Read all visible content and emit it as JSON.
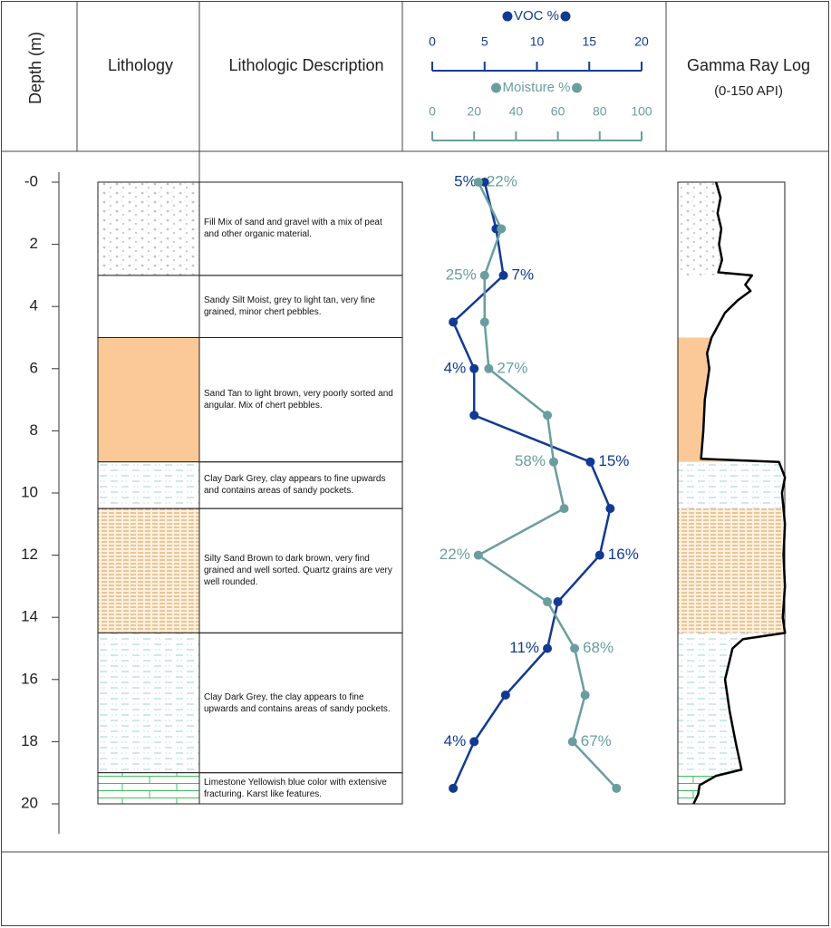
{
  "header": {
    "depth_label": "Depth (m)",
    "lithology": "Lithology",
    "description": "Lithologic Description",
    "gamma_title": "Gamma Ray Log",
    "gamma_units": "(0-150 API)"
  },
  "depth_axis": {
    "ylim": [
      0,
      20
    ],
    "yticks": [
      {
        "value": 0,
        "label": "-0"
      },
      2,
      4,
      6,
      8,
      10,
      12,
      14,
      16,
      18,
      20
    ]
  },
  "layers": [
    {
      "top": 0,
      "bottom": 3,
      "pattern": "gravel",
      "description": "Fill  Mix of sand and gravel with a mix of peat and other organic material."
    },
    {
      "top": 3,
      "bottom": 5,
      "pattern": "plain",
      "description": "Sandy Silt Moist, grey to light tan, very fine grained, minor chert pebbles."
    },
    {
      "top": 5,
      "bottom": 9,
      "pattern": "sand",
      "description": "Sand Tan to light brown, very poorly sorted and angular.  Mix of chert pebbles."
    },
    {
      "top": 9,
      "bottom": 10.5,
      "pattern": "clay",
      "description": "Clay Dark Grey,  clay appears to fine upwards and contains areas of sandy pockets."
    },
    {
      "top": 10.5,
      "bottom": 14.5,
      "pattern": "silty",
      "description": "Silty Sand Brown to dark brown, very find grained and well sorted.  Quartz grains are very well rounded."
    },
    {
      "top": 14.5,
      "bottom": 19,
      "pattern": "clay",
      "description": "Clay Dark Grey,  the clay appears to fine upwards and contains areas of sandy pockets."
    },
    {
      "top": 19,
      "bottom": 20,
      "pattern": "limestone",
      "description": "Limestone Yellowish blue color with extensive fracturing.  Karst like features."
    }
  ],
  "chart_data": {
    "type": "line",
    "y": [
      0,
      1.5,
      3,
      4.5,
      6,
      7.5,
      9,
      10.5,
      12,
      13.5,
      15,
      16.5,
      18,
      19.5
    ],
    "series": [
      {
        "name": "VOC %",
        "color": "#123a92",
        "xlim": [
          0,
          20
        ],
        "xticks": [
          0,
          5,
          10,
          15,
          20
        ],
        "values": [
          5,
          6.1,
          6.8,
          2,
          4,
          4,
          15.1,
          17,
          16,
          12,
          11,
          7,
          4,
          2
        ],
        "value_labels": [
          "5%",
          null,
          "7%",
          null,
          "4%",
          null,
          "15%",
          null,
          "16%",
          null,
          "11%",
          null,
          "4%",
          null
        ]
      },
      {
        "name": "Moisture %",
        "color": "#6a9e9e",
        "xlim": [
          0,
          100
        ],
        "xticks": [
          0,
          20,
          40,
          60,
          80,
          100
        ],
        "values": [
          22,
          33,
          25,
          25,
          27,
          55,
          58,
          63,
          22,
          55,
          68,
          73,
          67,
          88
        ],
        "value_labels": [
          "22%",
          null,
          "25%",
          null,
          "27%",
          null,
          "58%",
          null,
          "22%",
          null,
          "68%",
          null,
          "67%",
          null
        ]
      }
    ]
  },
  "gamma": {
    "xlim": [
      0,
      150
    ],
    "color": "#000000",
    "depth": [
      0,
      0.5,
      1,
      1.5,
      2,
      2.5,
      2.9,
      3.0,
      3.3,
      3.5,
      3.8,
      4.2,
      5,
      5.5,
      6,
      7,
      8,
      8.9,
      9.0,
      9.5,
      10,
      11,
      12,
      13,
      14,
      14.5,
      14.7,
      15,
      16,
      17,
      18,
      18.9,
      19.1,
      19.4,
      19.7,
      20
    ],
    "values": [
      51,
      57,
      53,
      58,
      55,
      59,
      54,
      99,
      90,
      97,
      80,
      63,
      45,
      39,
      42,
      36,
      34,
      31,
      135,
      143,
      139,
      143,
      141,
      143,
      140,
      143,
      87,
      73,
      63,
      69,
      77,
      85,
      51,
      29,
      27,
      21
    ]
  }
}
